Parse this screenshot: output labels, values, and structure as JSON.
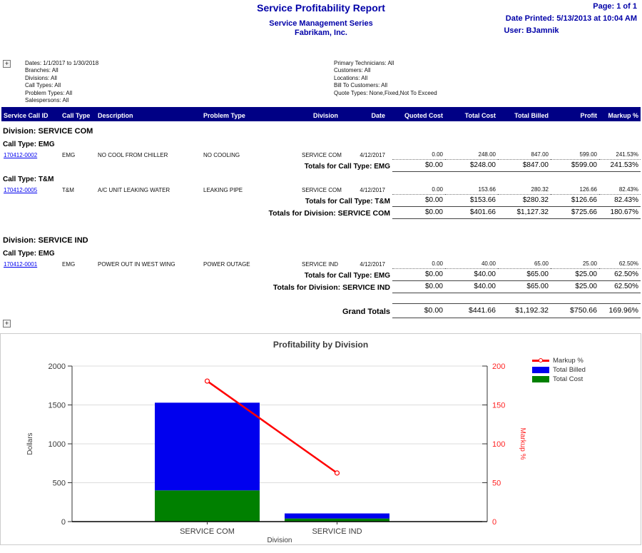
{
  "header": {
    "title": "Service Profitability Report",
    "subtitle1": "Service Management Series",
    "subtitle2": "Fabrikam, Inc.",
    "page": "Page: 1 of 1",
    "date_printed": "Date Printed: 5/13/2013 at 10:04 AM",
    "user": "User: BJamnik"
  },
  "icons": {
    "expand": "+"
  },
  "filters": {
    "left": [
      "Dates: 1/1/2017 to 1/30/2018",
      "Branches: All",
      "Divisions: All",
      "Call Types: All",
      "Problem Types: All",
      "Salespersons: All"
    ],
    "right": [
      "Primary Technicians: All",
      "Customers: All",
      "Locations: All",
      "Bill To Customers: All",
      "Quote Types: None,Fixed,Not To Exceed"
    ]
  },
  "table": {
    "columns": [
      "Service Call ID",
      "Call Type",
      "Description",
      "Problem Type",
      "Division",
      "Date",
      "Quoted Cost",
      "Total Cost",
      "Total Billed",
      "Profit",
      "Markup %"
    ]
  },
  "report": {
    "divisions": [
      {
        "title": "Division: SERVICE COM",
        "call_types": [
          {
            "title": "Call Type: EMG",
            "rows": [
              {
                "id": "170412-0002",
                "call_type": "EMG",
                "description": "NO COOL FROM CHILLER",
                "problem_type": "NO COOLING",
                "division": "SERVICE COM",
                "date": "4/12/2017",
                "quoted_cost": "0.00",
                "total_cost": "248.00",
                "total_billed": "847.00",
                "profit": "599.00",
                "markup": "241.53%"
              }
            ],
            "totals": {
              "label": "Totals for Call Type: EMG",
              "quoted_cost": "$0.00",
              "total_cost": "$248.00",
              "total_billed": "$847.00",
              "profit": "$599.00",
              "markup": "241.53%"
            }
          },
          {
            "title": "Call Type: T&M",
            "rows": [
              {
                "id": "170412-0005",
                "call_type": "T&M",
                "description": "A/C UNIT LEAKING WATER",
                "problem_type": "LEAKING PIPE",
                "division": "SERVICE COM",
                "date": "4/12/2017",
                "quoted_cost": "0.00",
                "total_cost": "153.66",
                "total_billed": "280.32",
                "profit": "126.66",
                "markup": "82.43%"
              }
            ],
            "totals": {
              "label": "Totals for Call Type: T&M",
              "quoted_cost": "$0.00",
              "total_cost": "$153.66",
              "total_billed": "$280.32",
              "profit": "$126.66",
              "markup": "82.43%"
            }
          }
        ],
        "totals": {
          "label": "Totals for Division: SERVICE COM",
          "quoted_cost": "$0.00",
          "total_cost": "$401.66",
          "total_billed": "$1,127.32",
          "profit": "$725.66",
          "markup": "180.67%"
        }
      },
      {
        "title": "Division: SERVICE IND",
        "call_types": [
          {
            "title": "Call Type: EMG",
            "rows": [
              {
                "id": "170412-0001",
                "call_type": "EMG",
                "description": "POWER OUT IN WEST WING",
                "problem_type": "POWER OUTAGE",
                "division": "SERVICE IND",
                "date": "4/12/2017",
                "quoted_cost": "0.00",
                "total_cost": "40.00",
                "total_billed": "65.00",
                "profit": "25.00",
                "markup": "62.50%"
              }
            ],
            "totals": {
              "label": "Totals for Call Type: EMG",
              "quoted_cost": "$0.00",
              "total_cost": "$40.00",
              "total_billed": "$65.00",
              "profit": "$25.00",
              "markup": "62.50%"
            }
          }
        ],
        "totals": {
          "label": "Totals for Division: SERVICE IND",
          "quoted_cost": "$0.00",
          "total_cost": "$40.00",
          "total_billed": "$65.00",
          "profit": "$25.00",
          "markup": "62.50%"
        }
      }
    ],
    "grand_totals": {
      "label": "Grand Totals",
      "quoted_cost": "$0.00",
      "total_cost": "$441.66",
      "total_billed": "$1,192.32",
      "profit": "$750.66",
      "markup": "169.96%"
    }
  },
  "chart_data": {
    "type": "bar",
    "title": "Profitability by Division",
    "categories": [
      "SERVICE COM",
      "SERVICE IND"
    ],
    "series": [
      {
        "name": "Total Cost",
        "kind": "bar",
        "color": "#008000",
        "values": [
          401.66,
          40.0
        ]
      },
      {
        "name": "Total Billed",
        "kind": "bar",
        "color": "#0000ee",
        "values": [
          1127.32,
          65.0
        ]
      },
      {
        "name": "Markup %",
        "kind": "line",
        "axis": "right",
        "color": "#ff0000",
        "values": [
          180.67,
          62.5
        ]
      }
    ],
    "stacked": true,
    "xlabel": "Division",
    "ylabel": "Dollars",
    "y2label": "Markup %",
    "ylim": [
      0,
      2000
    ],
    "y2lim": [
      0,
      200
    ],
    "yticks": [
      0,
      500,
      1000,
      1500,
      2000
    ],
    "y2ticks": [
      0,
      50,
      100,
      150,
      200
    ],
    "grid": true,
    "legend_position": "right",
    "legend_items": [
      {
        "label": "Markup %",
        "color": "#ff0000",
        "marker": "line"
      },
      {
        "label": "Total Billed",
        "color": "#0000ee",
        "marker": "box"
      },
      {
        "label": "Total Cost",
        "color": "#008000",
        "marker": "box"
      }
    ]
  }
}
